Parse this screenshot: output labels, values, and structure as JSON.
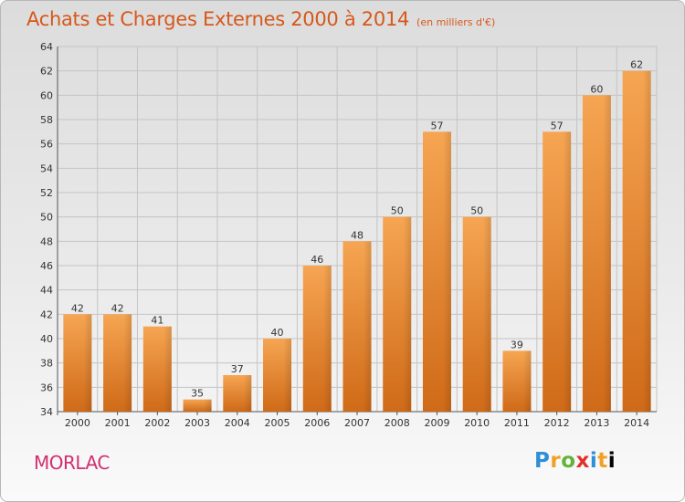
{
  "header": {
    "title": "Achats et Charges Externes 2000 à 2014",
    "subtitle": "(en milliers d'€)"
  },
  "footer": {
    "commune": "MORLAC",
    "brand": "Proxiti"
  },
  "colors": {
    "title": "#d6581b",
    "commune": "#d1306f",
    "bar_light": "#f5a04e",
    "bar_dark": "#d06d1b"
  },
  "chart_data": {
    "type": "bar",
    "categories": [
      "2000",
      "2001",
      "2002",
      "2003",
      "2004",
      "2005",
      "2006",
      "2007",
      "2008",
      "2009",
      "2010",
      "2011",
      "2012",
      "2013",
      "2014"
    ],
    "values": [
      42,
      42,
      41,
      35,
      37,
      40,
      46,
      48,
      50,
      57,
      50,
      39,
      57,
      60,
      62
    ],
    "title": "Achats et Charges Externes 2000 à 2014",
    "xlabel": "",
    "ylabel": "",
    "ylim": [
      34,
      64
    ],
    "yticks": [
      34,
      36,
      38,
      40,
      42,
      44,
      46,
      48,
      50,
      52,
      54,
      56,
      58,
      60,
      62,
      64
    ],
    "grid": true,
    "data_labels": true
  }
}
